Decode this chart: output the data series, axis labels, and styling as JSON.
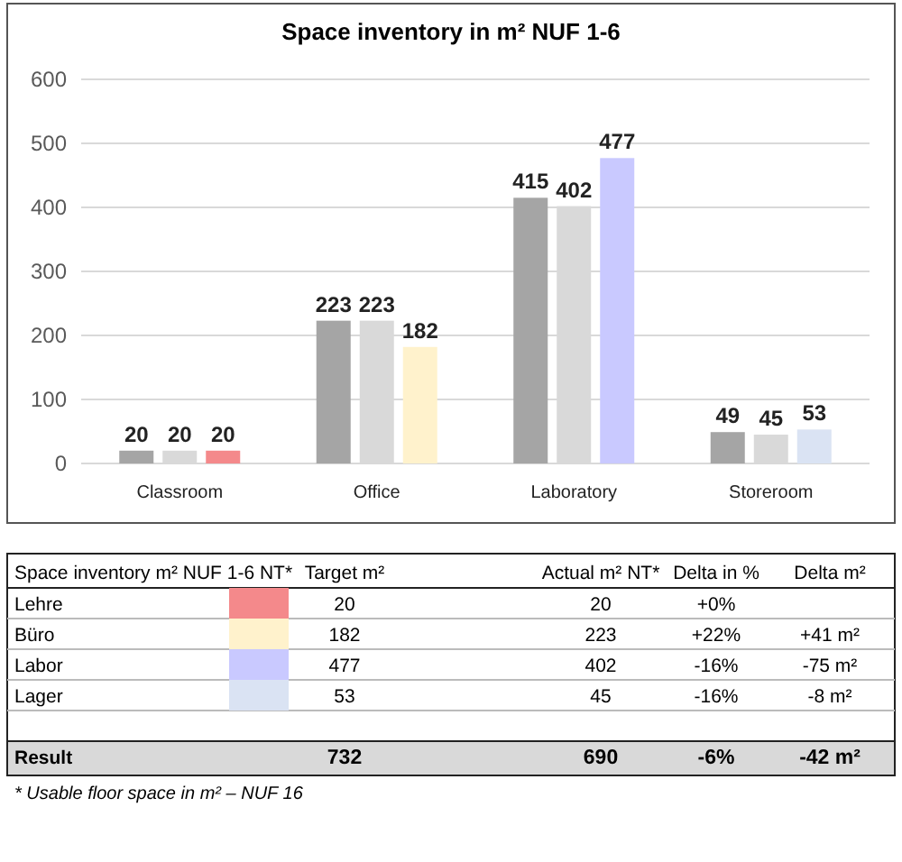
{
  "chart_data": [
    {
      "type": "bar",
      "title": "Space inventory in m² NUF 1-6",
      "categories": [
        "Classroom",
        "Office",
        "Laboratory",
        "Storeroom"
      ],
      "series": [
        {
          "color": "#a5a5a5",
          "values": [
            20,
            223,
            415,
            49
          ]
        },
        {
          "color": "#d9d9d9",
          "values": [
            20,
            223,
            402,
            45
          ]
        },
        {
          "colors": [
            "#f4898b",
            "#fff2cc",
            "#c9c9ff",
            "#dae3f3"
          ],
          "values": [
            20,
            182,
            477,
            53
          ]
        }
      ],
      "ylim": [
        0,
        600
      ],
      "yticks": [
        0,
        100,
        200,
        300,
        400,
        500,
        600
      ],
      "grid": "y",
      "data_labels": true
    },
    {
      "type": "other",
      "categories": [
        "Space inventory m² NUF 1-6 NT*",
        "Target m²",
        "Actual m² NT*",
        "Delta in %",
        "Delta m²"
      ],
      "y_categories": [
        "Lehre",
        "Büro",
        "Labor",
        "Lager",
        null,
        "Result"
      ],
      "colors": [
        "#f4898b",
        "#fff2cc",
        "#c9c9ff",
        "#dae3f3",
        null,
        null
      ],
      "cell_labels": [
        [
          "20",
          "20",
          "+0%",
          null
        ],
        [
          "182",
          "223",
          "+22%",
          "+41 m²"
        ],
        [
          "477",
          "402",
          "-16%",
          "-75 m²"
        ],
        [
          "53",
          "45",
          "-16%",
          "-8 m²"
        ],
        [
          null,
          null,
          null,
          null
        ],
        [
          "732",
          "690",
          "-6%",
          "-42 m²"
        ]
      ],
      "annotations": [
        "* Usable floor space in m² – NUF 16"
      ]
    }
  ]
}
